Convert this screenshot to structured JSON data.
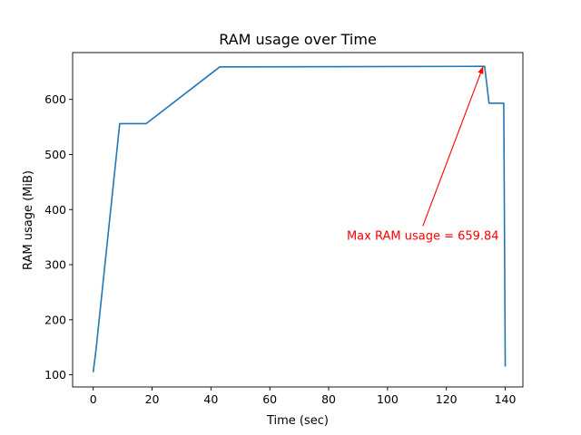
{
  "chart_data": {
    "type": "line",
    "title": "RAM usage over Time",
    "xlabel": "Time (sec)",
    "ylabel": "RAM usage (MiB)",
    "xlim": [
      -7,
      146
    ],
    "ylim": [
      78,
      685
    ],
    "xticks": [
      0,
      20,
      40,
      60,
      80,
      100,
      120,
      140
    ],
    "yticks": [
      100,
      200,
      300,
      400,
      500,
      600
    ],
    "grid": false,
    "series": [
      {
        "color": "#1f77b4",
        "x": [
          0,
          1,
          9,
          18,
          43,
          133,
          134.5,
          139.5,
          140
        ],
        "y": [
          105,
          148,
          556,
          556,
          659,
          660,
          593,
          593,
          115
        ]
      }
    ],
    "annotations": [
      {
        "text": "Max RAM usage = 659.84",
        "color": "#ff0000",
        "arrow_to": [
          132.5,
          659.84
        ],
        "text_at": [
          112,
          370
        ]
      }
    ]
  }
}
